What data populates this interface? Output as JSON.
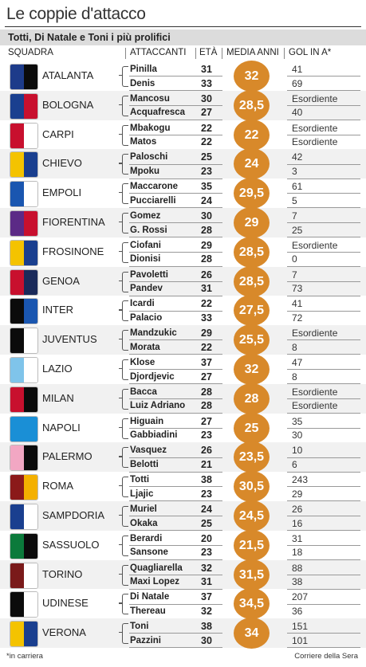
{
  "title": "Le coppie d'attacco",
  "subtitle": "Totti, Di Natale e Toni i più prolifici",
  "headers": {
    "squadra": "SQUADRA",
    "attaccanti": "ATTACCANTI",
    "eta": "ETÀ",
    "media": "MEDIA ANNI",
    "gol": "GOL IN A*"
  },
  "rows": [
    {
      "team": "ATALANTA",
      "logo_colors": [
        "#1d3b8a",
        "#0b0b0b"
      ],
      "media": "32",
      "players": [
        {
          "name": "Pinilla",
          "age": "31",
          "gol": "41"
        },
        {
          "name": "Denis",
          "age": "33",
          "gol": "69"
        }
      ]
    },
    {
      "team": "BOLOGNA",
      "logo_colors": [
        "#1a3f8f",
        "#c8102e"
      ],
      "media": "28,5",
      "players": [
        {
          "name": "Mancosu",
          "age": "30",
          "gol": "Esordiente"
        },
        {
          "name": "Acquafresca",
          "age": "27",
          "gol": "40"
        }
      ]
    },
    {
      "team": "CARPI",
      "logo_colors": [
        "#c8102e",
        "#ffffff"
      ],
      "media": "22",
      "players": [
        {
          "name": "Mbakogu",
          "age": "22",
          "gol": "Esordiente"
        },
        {
          "name": "Matos",
          "age": "22",
          "gol": "Esordiente"
        }
      ]
    },
    {
      "team": "CHIEVO",
      "logo_colors": [
        "#f4c300",
        "#1a3f8f"
      ],
      "media": "24",
      "players": [
        {
          "name": "Paloschi",
          "age": "25",
          "gol": "42"
        },
        {
          "name": "Mpoku",
          "age": "23",
          "gol": "3"
        }
      ]
    },
    {
      "team": "EMPOLI",
      "logo_colors": [
        "#1a56b0",
        "#ffffff"
      ],
      "media": "29,5",
      "players": [
        {
          "name": "Maccarone",
          "age": "35",
          "gol": "61"
        },
        {
          "name": "Pucciarelli",
          "age": "24",
          "gol": "5"
        }
      ]
    },
    {
      "team": "FIORENTINA",
      "logo_colors": [
        "#5b2a86",
        "#c8102e"
      ],
      "media": "29",
      "players": [
        {
          "name": "Gomez",
          "age": "30",
          "gol": "7"
        },
        {
          "name": "G. Rossi",
          "age": "28",
          "gol": "25"
        }
      ]
    },
    {
      "team": "FROSINONE",
      "logo_colors": [
        "#f4c300",
        "#1a3f8f"
      ],
      "media": "28,5",
      "players": [
        {
          "name": "Ciofani",
          "age": "29",
          "gol": "Esordiente"
        },
        {
          "name": "Dionisi",
          "age": "28",
          "gol": "0"
        }
      ]
    },
    {
      "team": "GENOA",
      "logo_colors": [
        "#c8102e",
        "#1a2a5a"
      ],
      "media": "28,5",
      "players": [
        {
          "name": "Pavoletti",
          "age": "26",
          "gol": "7"
        },
        {
          "name": "Pandev",
          "age": "31",
          "gol": "73"
        }
      ]
    },
    {
      "team": "INTER",
      "logo_colors": [
        "#0b0b0b",
        "#1a56b0"
      ],
      "media": "27,5",
      "players": [
        {
          "name": "Icardi",
          "age": "22",
          "gol": "41"
        },
        {
          "name": "Palacio",
          "age": "33",
          "gol": "72"
        }
      ]
    },
    {
      "team": "JUVENTUS",
      "logo_colors": [
        "#0b0b0b",
        "#ffffff"
      ],
      "media": "25,5",
      "players": [
        {
          "name": "Mandzukic",
          "age": "29",
          "gol": "Esordiente"
        },
        {
          "name": "Morata",
          "age": "22",
          "gol": "8"
        }
      ]
    },
    {
      "team": "LAZIO",
      "logo_colors": [
        "#7fc4ea",
        "#ffffff"
      ],
      "media": "32",
      "players": [
        {
          "name": "Klose",
          "age": "37",
          "gol": "47"
        },
        {
          "name": "Djordjevic",
          "age": "27",
          "gol": "8"
        }
      ]
    },
    {
      "team": "MILAN",
      "logo_colors": [
        "#c8102e",
        "#0b0b0b"
      ],
      "media": "28",
      "players": [
        {
          "name": "Bacca",
          "age": "28",
          "gol": "Esordiente"
        },
        {
          "name": "Luiz Adriano",
          "age": "28",
          "gol": "Esordiente"
        }
      ]
    },
    {
      "team": "NAPOLI",
      "logo_colors": [
        "#1a8fd6",
        "#1a8fd6"
      ],
      "media": "25",
      "players": [
        {
          "name": "Higuain",
          "age": "27",
          "gol": "35"
        },
        {
          "name": "Gabbiadini",
          "age": "23",
          "gol": "30"
        }
      ]
    },
    {
      "team": "PALERMO",
      "logo_colors": [
        "#f2a7c3",
        "#0b0b0b"
      ],
      "media": "23,5",
      "players": [
        {
          "name": "Vasquez",
          "age": "26",
          "gol": "10"
        },
        {
          "name": "Belotti",
          "age": "21",
          "gol": "6"
        }
      ]
    },
    {
      "team": "ROMA",
      "logo_colors": [
        "#8b1a1a",
        "#f4b000"
      ],
      "media": "30,5",
      "players": [
        {
          "name": "Totti",
          "age": "38",
          "gol": "243"
        },
        {
          "name": "Ljajic",
          "age": "23",
          "gol": "29"
        }
      ]
    },
    {
      "team": "SAMPDORIA",
      "logo_colors": [
        "#1a3f8f",
        "#ffffff"
      ],
      "media": "24,5",
      "players": [
        {
          "name": "Muriel",
          "age": "24",
          "gol": "26"
        },
        {
          "name": "Okaka",
          "age": "25",
          "gol": "16"
        }
      ]
    },
    {
      "team": "SASSUOLO",
      "logo_colors": [
        "#0b7a3b",
        "#0b0b0b"
      ],
      "media": "21,5",
      "players": [
        {
          "name": "Berardi",
          "age": "20",
          "gol": "31"
        },
        {
          "name": "Sansone",
          "age": "23",
          "gol": "18"
        }
      ]
    },
    {
      "team": "TORINO",
      "logo_colors": [
        "#7a1a1a",
        "#ffffff"
      ],
      "media": "31,5",
      "players": [
        {
          "name": "Quagliarella",
          "age": "32",
          "gol": "88"
        },
        {
          "name": "Maxi Lopez",
          "age": "31",
          "gol": "38"
        }
      ]
    },
    {
      "team": "UDINESE",
      "logo_colors": [
        "#0b0b0b",
        "#ffffff"
      ],
      "media": "34,5",
      "players": [
        {
          "name": "Di Natale",
          "age": "37",
          "gol": "207"
        },
        {
          "name": "Thereau",
          "age": "32",
          "gol": "36"
        }
      ]
    },
    {
      "team": "VERONA",
      "logo_colors": [
        "#f4c300",
        "#1a3f8f"
      ],
      "media": "34",
      "players": [
        {
          "name": "Toni",
          "age": "38",
          "gol": "151"
        },
        {
          "name": "Pazzini",
          "age": "30",
          "gol": "101"
        }
      ]
    }
  ],
  "footnote": "*in carriera",
  "source": "Corriere della Sera"
}
